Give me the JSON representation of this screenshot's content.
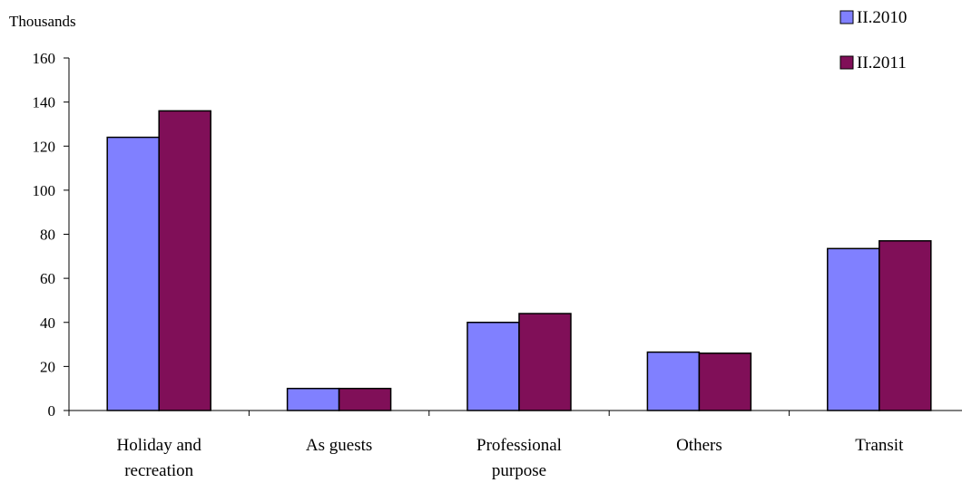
{
  "chart_data": {
    "type": "bar",
    "ylabel": "Thousands",
    "categories": [
      [
        "Holiday and",
        "recreation"
      ],
      [
        "As guests"
      ],
      [
        "Professional",
        "purpose"
      ],
      [
        "Others"
      ],
      [
        "Transit"
      ]
    ],
    "series": [
      {
        "name": "II.2010",
        "values": [
          124,
          10,
          40,
          26.5,
          73.5
        ]
      },
      {
        "name": "II.2011",
        "values": [
          136,
          10,
          44,
          26,
          77
        ]
      }
    ],
    "ylim": [
      0,
      160
    ],
    "yticks": [
      "0",
      "20",
      "40",
      "60",
      "80",
      "100",
      "120",
      "140",
      "160"
    ],
    "grid": false,
    "legend_position": "top-right"
  },
  "colors": {
    "series": [
      "#8080ff",
      "#800f58"
    ],
    "stroke": "#000000"
  }
}
